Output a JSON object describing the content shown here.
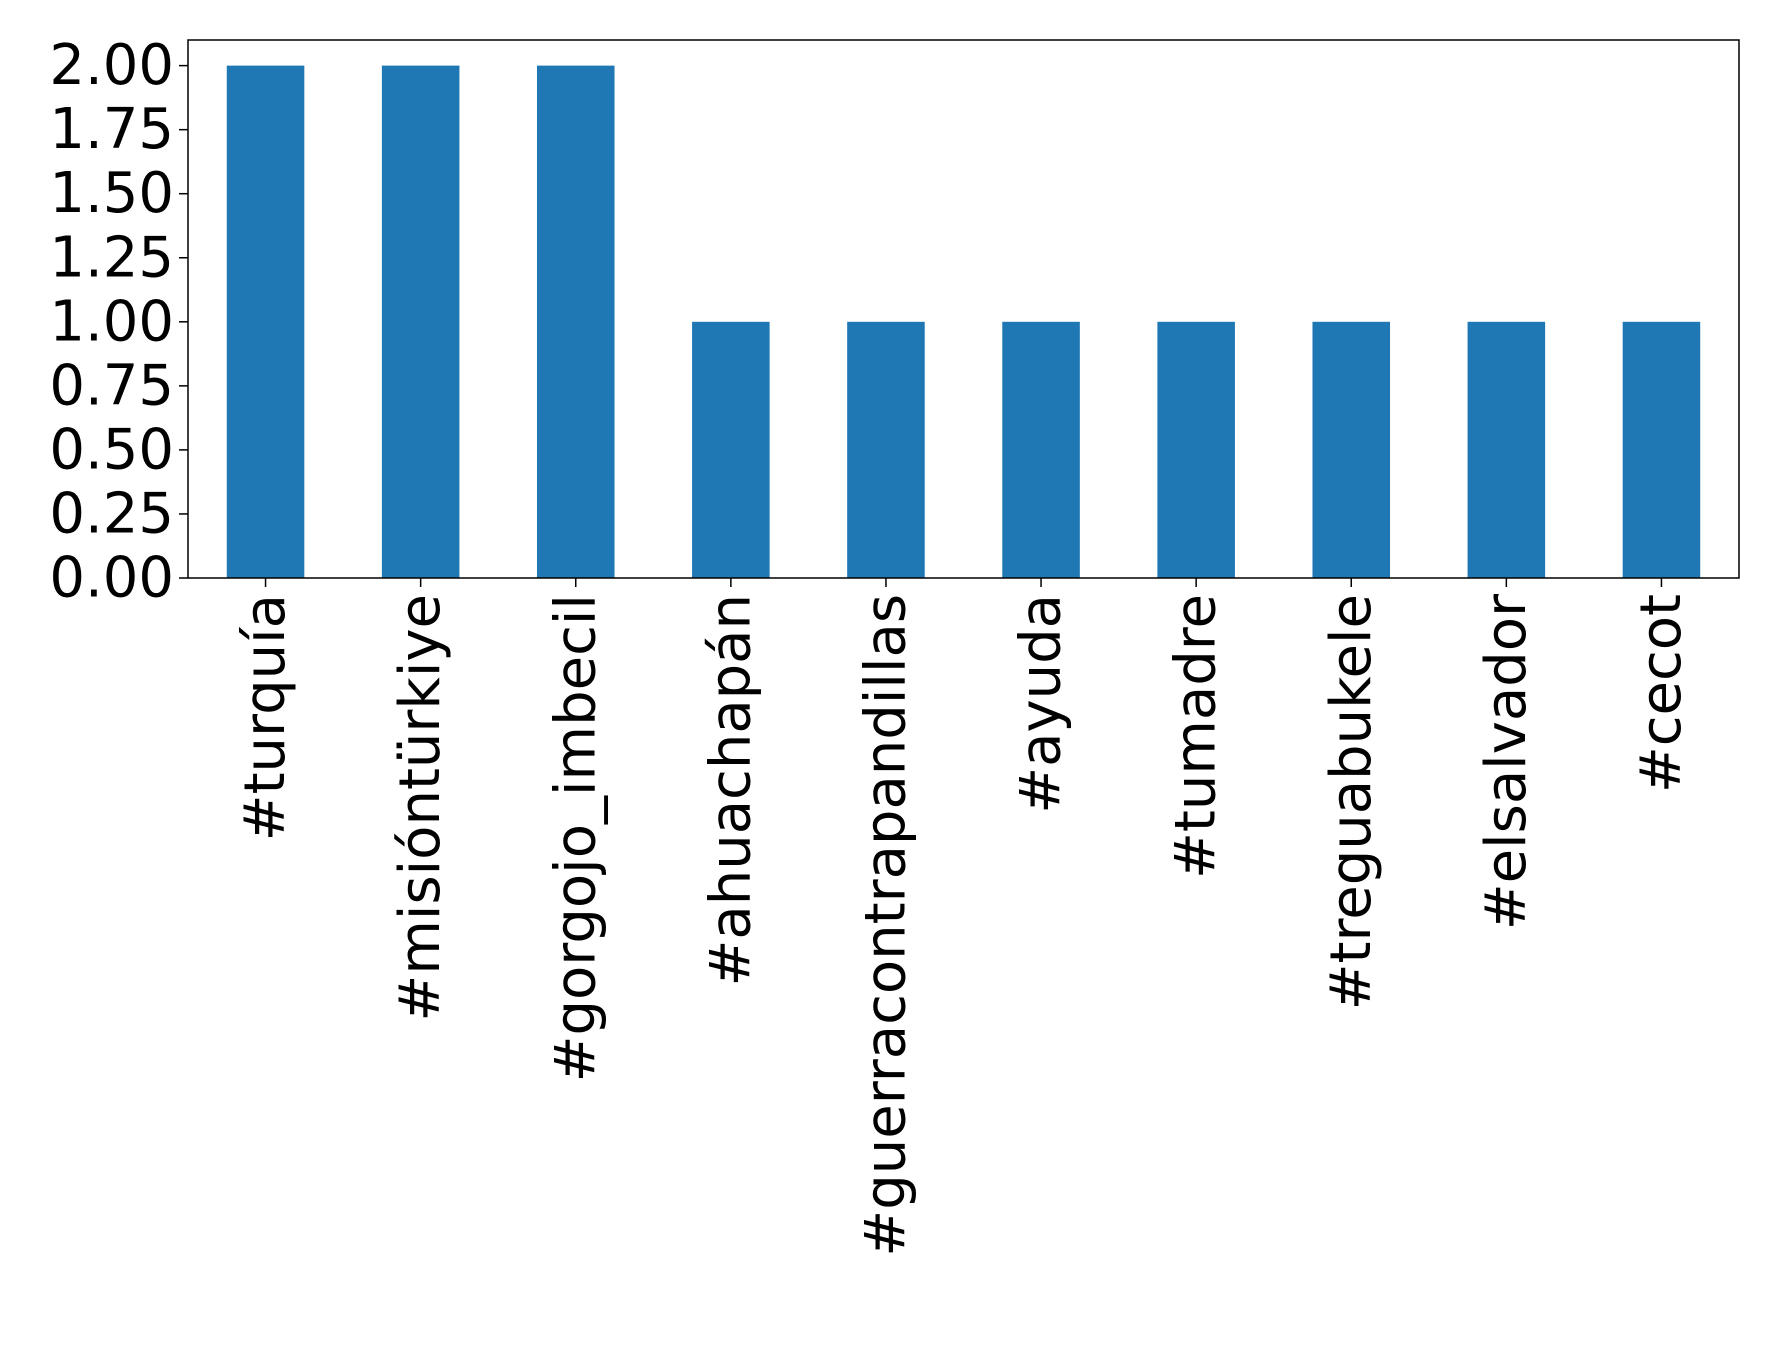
{
  "chart_data": {
    "type": "bar",
    "categories": [
      "#turquía",
      "#misióntürkiye",
      "#gorgojo_imbecil",
      "#ahuachapán",
      "#guerracontrapandillas",
      "#ayuda",
      "#tumadre",
      "#treguabukele",
      "#elsalvador",
      "#cecot"
    ],
    "values": [
      2,
      2,
      2,
      1,
      1,
      1,
      1,
      1,
      1,
      1
    ],
    "color": "#1f77b4",
    "ylim": [
      0,
      2.1
    ],
    "yticks": [
      {
        "value": 0,
        "label": "0.00"
      },
      0.25,
      {
        "value": 0.5,
        "label": "0.50"
      },
      0.75,
      {
        "value": 1,
        "label": "1.00"
      },
      1.25,
      {
        "value": 1.5,
        "label": "1.50"
      },
      1.75,
      {
        "value": 2,
        "label": "2.00"
      }
    ],
    "grid": false
  }
}
